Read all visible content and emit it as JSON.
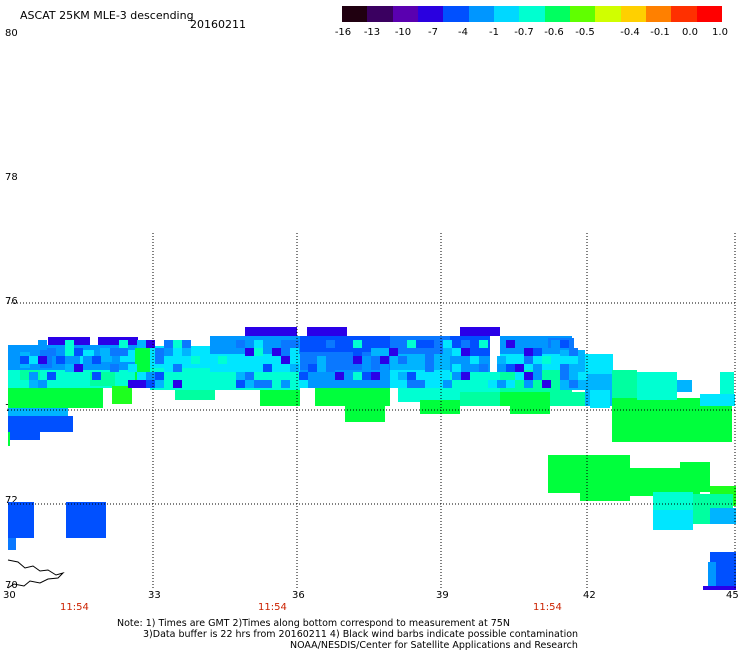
{
  "header": {
    "title": "ASCAT 25KM MLE-3 descending",
    "date": "20160211"
  },
  "colorbar": {
    "ticks": [
      "-16",
      "-13",
      "-10",
      "-7",
      "-4",
      "-1",
      "-0.7",
      "-0.6",
      "-0.5",
      "-0.4",
      "-0.1",
      "0.0",
      "1.0"
    ],
    "colors": [
      "#200010",
      "#3a0060",
      "#5a00b0",
      "#2a00e0",
      "#0050ff",
      "#0096ff",
      "#00d8ff",
      "#00ffd0",
      "#00ff60",
      "#60ff00",
      "#d0ff00",
      "#ffd000",
      "#ff8000",
      "#ff3000",
      "#ff0000"
    ]
  },
  "axes": {
    "y_ticks": [
      "80",
      "78",
      "76",
      "74",
      "72",
      "70"
    ],
    "x_ticks": [
      "30",
      "33",
      "36",
      "39",
      "42",
      "45"
    ],
    "times": [
      "11:54",
      "11:54",
      "11:54"
    ]
  },
  "notes": {
    "line1": "Note: 1) Times are GMT 2)Times along bottom correspond to measurement at 75N",
    "line2": "3)Data buffer is 22 hrs from 20160211 4) Black wind barbs indicate possible contamination",
    "line3": "NOAA/NESDIS/Center for Satellite Applications and Research"
  },
  "map": {
    "lon_range": [
      30,
      45
    ],
    "lat_range": [
      70,
      80
    ],
    "colors": {
      "darkblue": "#2a00e8",
      "blue": "#0050ff",
      "mblue": "#0a78ff",
      "lblue": "#0096ff",
      "sky": "#00b4ff",
      "cyan": "#00e6ff",
      "aqua": "#00ffd2",
      "teal": "#00ffa0",
      "green": "#00ff3c",
      "lgreen": "#1eff1e"
    }
  }
}
